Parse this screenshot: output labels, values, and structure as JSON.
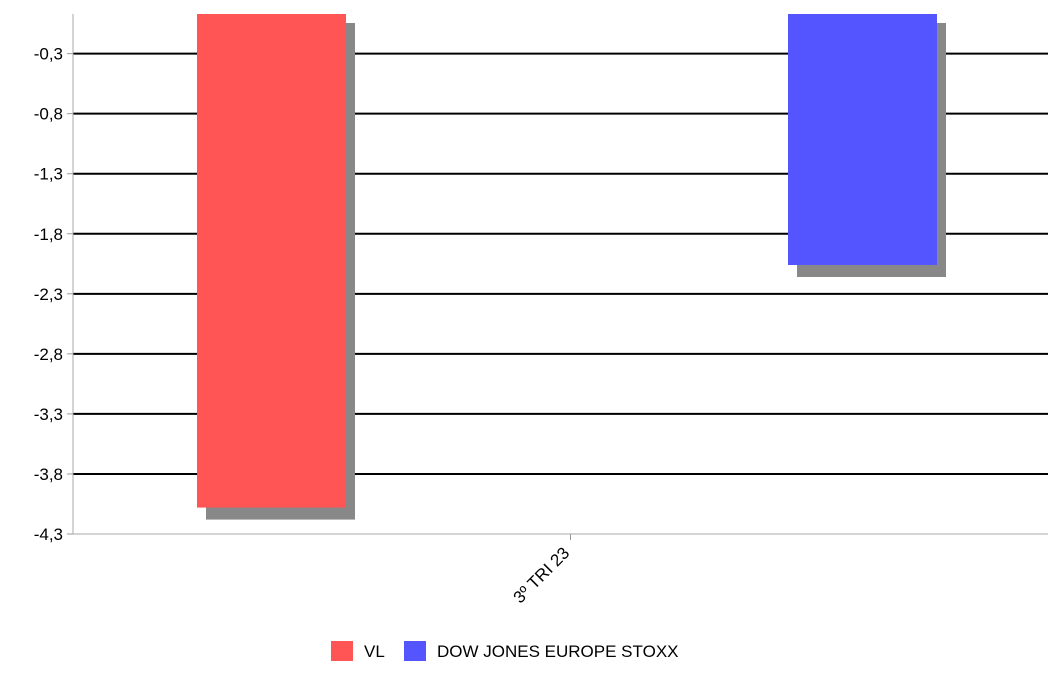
{
  "chart_data": {
    "type": "bar",
    "title": "",
    "xlabel": "",
    "ylabel": "",
    "categories": [
      "3º TRI 23"
    ],
    "series": [
      {
        "name": "VL",
        "values": [
          -4.08
        ],
        "color": "#ff5555"
      },
      {
        "name": "DOW JONES EUROPE STOXX",
        "values": [
          -2.06
        ],
        "color": "#5555ff"
      }
    ],
    "ylim": [
      -4.3,
      0.03
    ],
    "yticks": [
      -0.3,
      -0.8,
      -1.3,
      -1.8,
      -2.3,
      -2.8,
      -3.3,
      -3.8,
      -4.3
    ],
    "ytick_labels": [
      "-0,3",
      "-0,8",
      "-1,3",
      "-1,8",
      "-2,3",
      "-2,8",
      "-3,3",
      "-3,8",
      "-4,3"
    ],
    "grid": true,
    "shadow_color": "#888888",
    "legend_position": "bottom-center"
  }
}
